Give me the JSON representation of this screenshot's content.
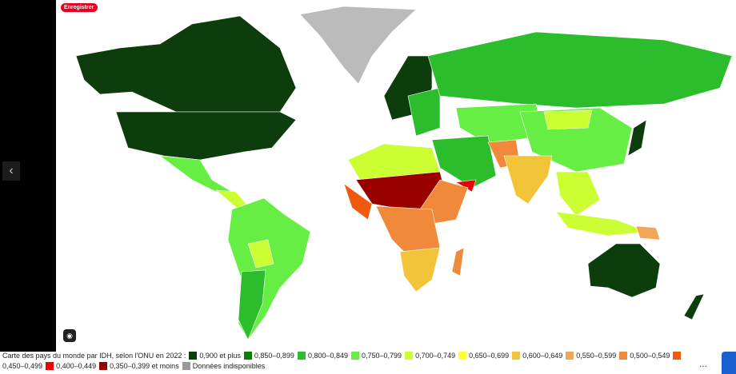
{
  "save_button": "Enregistrer",
  "more_button": "...",
  "legend": {
    "caption": "Carte des pays du monde par IDH, selon l'ONU en 2022 :",
    "items": [
      {
        "label": "0,900 et plus",
        "color": "#0d3d0d"
      },
      {
        "label": "0,850–0,899",
        "color": "#0a7d0a"
      },
      {
        "label": "0,800–0,849",
        "color": "#2cbd2c"
      },
      {
        "label": "0,750–0,799",
        "color": "#66ee44"
      },
      {
        "label": "0,700–0,749",
        "color": "#ccff33"
      },
      {
        "label": "0,650–0,699",
        "color": "#ffff33"
      },
      {
        "label": "0,600–0,649",
        "color": "#f2c43a"
      },
      {
        "label": "0,550–0,599",
        "color": "#f2a65a"
      },
      {
        "label": "0,500–0,549",
        "color": "#f08a3a"
      },
      {
        "label": "0,450–0,499",
        "color": "#f05a10"
      },
      {
        "label": "0,400–0,449",
        "color": "#ee0000"
      },
      {
        "label": "0,350–0,399 et moins",
        "color": "#990000"
      },
      {
        "label": "Données indisponibles",
        "color": "#999999"
      }
    ]
  }
}
